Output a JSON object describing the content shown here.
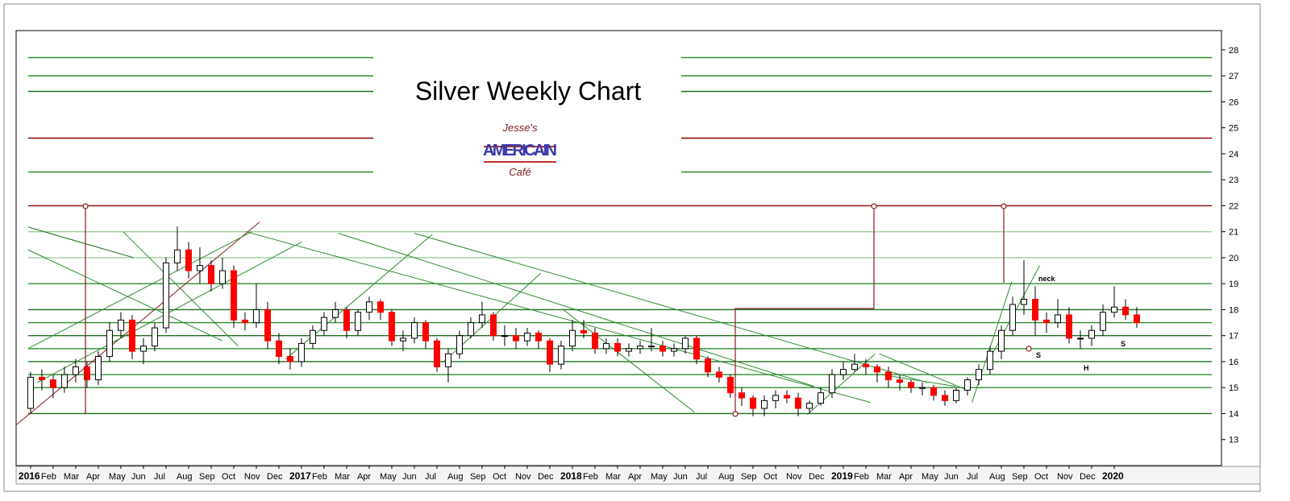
{
  "chart_data": {
    "type": "candlestick",
    "title": "Silver Weekly Chart",
    "logo": {
      "line1": "Jesse's",
      "line2": "AMERICAIN",
      "line3": "Café"
    },
    "annotations": [
      "neck",
      "S",
      "H",
      "S"
    ],
    "xlim": [
      -0.64,
      52.75
    ],
    "ylim": [
      12,
      28.74
    ],
    "yticks": [
      13,
      14,
      15,
      16,
      17,
      18,
      19,
      20,
      21,
      22,
      23,
      24,
      25,
      26,
      27,
      28
    ],
    "xticks": [
      {
        "value": 0,
        "label": "2016"
      },
      {
        "value": 1,
        "label": "Feb"
      },
      {
        "value": 2,
        "label": "Mar"
      },
      {
        "value": 3,
        "label": "Apr"
      },
      {
        "value": 4,
        "label": "May"
      },
      {
        "value": 5,
        "label": "Jun"
      },
      {
        "value": 6,
        "label": "Jul"
      },
      {
        "value": 7,
        "label": "Aug"
      },
      {
        "value": 8,
        "label": "Sep"
      },
      {
        "value": 9,
        "label": "Oct"
      },
      {
        "value": 10,
        "label": "Nov"
      },
      {
        "value": 11,
        "label": "Dec"
      },
      {
        "value": 12,
        "label": "2017"
      },
      {
        "value": 13,
        "label": "Feb"
      },
      {
        "value": 14,
        "label": "Mar"
      },
      {
        "value": 15,
        "label": "Apr"
      },
      {
        "value": 16,
        "label": "May"
      },
      {
        "value": 17,
        "label": "Jun"
      },
      {
        "value": 18,
        "label": "Jul"
      },
      {
        "value": 19,
        "label": "Aug"
      },
      {
        "value": 20,
        "label": "Sep"
      },
      {
        "value": 21,
        "label": "Oct"
      },
      {
        "value": 22,
        "label": "Nov"
      },
      {
        "value": 23,
        "label": "Dec"
      },
      {
        "value": 24,
        "label": "2018"
      },
      {
        "value": 25,
        "label": "Feb"
      },
      {
        "value": 26,
        "label": "Mar"
      },
      {
        "value": 27,
        "label": "Apr"
      },
      {
        "value": 28,
        "label": "May"
      },
      {
        "value": 29,
        "label": "Jun"
      },
      {
        "value": 30,
        "label": "Jul"
      },
      {
        "value": 31,
        "label": "Aug"
      },
      {
        "value": 32,
        "label": "Sep"
      },
      {
        "value": 33,
        "label": "Oct"
      },
      {
        "value": 34,
        "label": "Nov"
      },
      {
        "value": 35,
        "label": "Dec"
      },
      {
        "value": 36,
        "label": "2019"
      },
      {
        "value": 37,
        "label": "Feb"
      },
      {
        "value": 38,
        "label": "Mar"
      },
      {
        "value": 39,
        "label": "Apr"
      },
      {
        "value": 40,
        "label": "May"
      },
      {
        "value": 41,
        "label": "Jun"
      },
      {
        "value": 42,
        "label": "Jul"
      },
      {
        "value": 43,
        "label": "Aug"
      },
      {
        "value": 44,
        "label": "Sep"
      },
      {
        "value": 45,
        "label": "Oct"
      },
      {
        "value": 46,
        "label": "Nov"
      },
      {
        "value": 47,
        "label": "Dec"
      },
      {
        "value": 48,
        "label": "2020"
      }
    ],
    "up_color": "#ffffff",
    "down_color": "#ff0000",
    "x": [
      0,
      0.5,
      1,
      1.5,
      2,
      2.5,
      3,
      3.5,
      4,
      4.5,
      5,
      5.5,
      6,
      6.5,
      7,
      7.5,
      8,
      8.5,
      9,
      9.5,
      10,
      10.5,
      11,
      11.5,
      12,
      12.5,
      13,
      13.5,
      14,
      14.5,
      15,
      15.5,
      16,
      16.5,
      17,
      17.5,
      18,
      18.5,
      19,
      19.5,
      20,
      20.5,
      21,
      21.5,
      22,
      22.5,
      23,
      23.5,
      24,
      24.5,
      25,
      25.5,
      26,
      26.5,
      27,
      27.5,
      28,
      28.5,
      29,
      29.5,
      30,
      30.5,
      31,
      31.5,
      32,
      32.5,
      33,
      33.5,
      34,
      34.5,
      35,
      35.5,
      36,
      36.5,
      37,
      37.5,
      38,
      38.5,
      39,
      39.5,
      40,
      40.5,
      41,
      41.5,
      42,
      42.5,
      43,
      43.5,
      44,
      44.5,
      45,
      45.5,
      46,
      46.5,
      47,
      47.5,
      48,
      48.5,
      49
    ],
    "candles": [
      [
        14.2,
        15.6,
        14.0,
        15.4
      ],
      [
        15.4,
        15.7,
        14.9,
        15.3
      ],
      [
        15.3,
        15.5,
        14.6,
        15.0
      ],
      [
        15.0,
        15.8,
        14.8,
        15.5
      ],
      [
        15.5,
        16.1,
        15.2,
        15.8
      ],
      [
        15.8,
        16.0,
        15.0,
        15.3
      ],
      [
        15.3,
        16.4,
        15.1,
        16.2
      ],
      [
        16.2,
        17.5,
        16.0,
        17.2
      ],
      [
        17.2,
        17.9,
        16.9,
        17.6
      ],
      [
        17.6,
        17.8,
        16.1,
        16.4
      ],
      [
        16.4,
        16.9,
        15.9,
        16.6
      ],
      [
        16.6,
        17.5,
        16.4,
        17.3
      ],
      [
        17.3,
        20.0,
        17.1,
        19.8
      ],
      [
        19.8,
        21.2,
        19.5,
        20.3
      ],
      [
        20.3,
        20.6,
        19.2,
        19.5
      ],
      [
        19.5,
        20.4,
        19.0,
        19.7
      ],
      [
        19.7,
        19.9,
        18.7,
        19.0
      ],
      [
        19.0,
        20.0,
        18.8,
        19.5
      ],
      [
        19.5,
        19.7,
        17.3,
        17.6
      ],
      [
        17.6,
        17.9,
        17.2,
        17.5
      ],
      [
        17.5,
        19.0,
        17.3,
        18.0
      ],
      [
        18.0,
        18.3,
        16.5,
        16.8
      ],
      [
        16.8,
        17.1,
        15.9,
        16.2
      ],
      [
        16.2,
        16.5,
        15.7,
        16.0
      ],
      [
        16.0,
        16.9,
        15.8,
        16.7
      ],
      [
        16.7,
        17.4,
        16.5,
        17.2
      ],
      [
        17.2,
        17.9,
        17.0,
        17.7
      ],
      [
        17.7,
        18.3,
        17.5,
        18.0
      ],
      [
        18.0,
        18.1,
        16.9,
        17.2
      ],
      [
        17.2,
        18.0,
        17.0,
        17.9
      ],
      [
        17.9,
        18.5,
        17.6,
        18.3
      ],
      [
        18.3,
        18.4,
        17.6,
        17.9
      ],
      [
        17.9,
        18.0,
        16.6,
        16.8
      ],
      [
        16.8,
        17.2,
        16.4,
        16.9
      ],
      [
        16.9,
        17.7,
        16.7,
        17.5
      ],
      [
        17.5,
        17.6,
        16.5,
        16.8
      ],
      [
        16.8,
        16.9,
        15.6,
        15.8
      ],
      [
        15.8,
        16.5,
        15.2,
        16.3
      ],
      [
        16.3,
        17.2,
        16.1,
        17.0
      ],
      [
        17.0,
        17.7,
        16.9,
        17.5
      ],
      [
        17.5,
        18.3,
        17.3,
        17.8
      ],
      [
        17.8,
        17.9,
        16.8,
        17.0
      ],
      [
        17.0,
        17.4,
        16.6,
        17.0
      ],
      [
        17.0,
        17.3,
        16.5,
        16.8
      ],
      [
        16.8,
        17.3,
        16.6,
        17.1
      ],
      [
        17.1,
        17.2,
        16.5,
        16.8
      ],
      [
        16.8,
        16.9,
        15.6,
        15.9
      ],
      [
        15.9,
        16.8,
        15.7,
        16.6
      ],
      [
        16.6,
        17.6,
        16.4,
        17.2
      ],
      [
        17.2,
        17.6,
        16.9,
        17.1
      ],
      [
        17.1,
        17.3,
        16.3,
        16.5
      ],
      [
        16.5,
        16.9,
        16.3,
        16.7
      ],
      [
        16.7,
        16.9,
        16.2,
        16.4
      ],
      [
        16.4,
        16.7,
        16.2,
        16.5
      ],
      [
        16.5,
        16.8,
        16.3,
        16.6
      ],
      [
        16.6,
        17.3,
        16.4,
        16.6
      ],
      [
        16.6,
        16.8,
        16.2,
        16.4
      ],
      [
        16.4,
        16.7,
        16.2,
        16.5
      ],
      [
        16.5,
        17.0,
        16.3,
        16.9
      ],
      [
        16.9,
        17.0,
        15.9,
        16.1
      ],
      [
        16.1,
        16.2,
        15.4,
        15.6
      ],
      [
        15.6,
        15.8,
        15.2,
        15.4
      ],
      [
        15.4,
        15.5,
        14.6,
        14.8
      ],
      [
        14.8,
        15.0,
        14.3,
        14.6
      ],
      [
        14.6,
        14.7,
        13.9,
        14.2
      ],
      [
        14.2,
        14.7,
        13.9,
        14.5
      ],
      [
        14.5,
        14.9,
        14.2,
        14.7
      ],
      [
        14.7,
        14.9,
        14.4,
        14.6
      ],
      [
        14.6,
        14.8,
        13.9,
        14.2
      ],
      [
        14.2,
        14.5,
        14.0,
        14.4
      ],
      [
        14.4,
        15.0,
        14.3,
        14.8
      ],
      [
        14.8,
        15.7,
        14.6,
        15.5
      ],
      [
        15.5,
        16.0,
        15.3,
        15.7
      ],
      [
        15.7,
        16.3,
        15.6,
        15.9
      ],
      [
        15.9,
        16.1,
        15.5,
        15.8
      ],
      [
        15.8,
        15.9,
        15.2,
        15.6
      ],
      [
        15.6,
        15.8,
        15.0,
        15.3
      ],
      [
        15.3,
        15.5,
        14.9,
        15.2
      ],
      [
        15.2,
        15.3,
        14.8,
        15.0
      ],
      [
        15.0,
        15.2,
        14.7,
        15.0
      ],
      [
        15.0,
        15.1,
        14.5,
        14.7
      ],
      [
        14.7,
        14.9,
        14.3,
        14.5
      ],
      [
        14.5,
        15.0,
        14.4,
        14.9
      ],
      [
        14.9,
        15.4,
        14.7,
        15.3
      ],
      [
        15.3,
        15.9,
        15.1,
        15.7
      ],
      [
        15.7,
        16.6,
        15.5,
        16.4
      ],
      [
        16.4,
        17.4,
        16.1,
        17.2
      ],
      [
        17.2,
        18.5,
        17.0,
        18.2
      ],
      [
        18.2,
        19.9,
        17.8,
        18.4
      ],
      [
        18.4,
        18.9,
        17.0,
        17.6
      ],
      [
        17.6,
        17.9,
        17.1,
        17.5
      ],
      [
        17.5,
        18.4,
        17.3,
        17.8
      ],
      [
        17.8,
        18.1,
        16.7,
        16.9
      ],
      [
        16.9,
        17.2,
        16.5,
        16.9
      ],
      [
        16.9,
        17.4,
        16.6,
        17.2
      ],
      [
        17.2,
        18.2,
        17.0,
        17.9
      ],
      [
        17.9,
        18.9,
        17.7,
        18.1
      ],
      [
        18.1,
        18.4,
        17.6,
        17.8
      ],
      [
        17.8,
        18.1,
        17.3,
        17.5
      ]
    ],
    "upper_levels": [
      {
        "value": 27.7,
        "color": "#2e8b2e"
      },
      {
        "value": 27,
        "color": "#2e8b2e"
      },
      {
        "value": 26.4,
        "color": "#1f6e1f"
      },
      {
        "value": 24.6,
        "color": "#8b0000"
      },
      {
        "value": 23.3,
        "color": "#2e8b2e"
      }
    ],
    "levels": [
      {
        "value": 22,
        "color": "#8b0000"
      },
      {
        "value": 21,
        "color": "#9fcf9f"
      },
      {
        "value": 20,
        "color": "#9fcf9f"
      },
      {
        "value": 19,
        "color": "#2e8b2e"
      },
      {
        "value": 18,
        "color": "#1f6e1f"
      },
      {
        "value": 17.5,
        "color": "#2e8b2e"
      },
      {
        "value": 17,
        "color": "#1f6e1f"
      },
      {
        "value": 16.5,
        "color": "#2e8b2e"
      },
      {
        "value": 16,
        "color": "#1f6e1f"
      },
      {
        "value": 15.5,
        "color": "#2e8b2e"
      },
      {
        "value": 15,
        "color": "#2e8b2e"
      },
      {
        "value": 14,
        "color": "#1f6e1f"
      }
    ],
    "trendlines": [
      {
        "points": [
          -0.64,
          13.56,
          10.14,
          21.37
        ],
        "color": "#8b1a1a"
      },
      {
        "points": [
          -0.11,
          21.18,
          4.57,
          20.0
        ],
        "color": "#1f6e1f"
      },
      {
        "points": [
          -0.11,
          20.3,
          8.5,
          16.8
        ],
        "color": "#2e8b2e"
      },
      {
        "points": [
          -0.11,
          16.5,
          9.8,
          21.0
        ],
        "color": "#2e8b2e"
      },
      {
        "points": [
          0.3,
          15.2,
          12.0,
          20.6
        ],
        "color": "#2e8b2e"
      },
      {
        "points": [
          4.1,
          21.0,
          9.2,
          16.6
        ],
        "color": "#2e8b2e"
      },
      {
        "points": [
          9.54,
          21.0,
          37.2,
          14.43
        ],
        "color": "#2e8b2e"
      },
      {
        "points": [
          13.64,
          20.94,
          34.7,
          15.05
        ],
        "color": "#2e8b2e"
      },
      {
        "points": [
          17.0,
          20.94,
          39.7,
          15.2
        ],
        "color": "#2e8b2e"
      },
      {
        "points": [
          11.3,
          16.1,
          17.8,
          20.9
        ],
        "color": "#2e8b2e"
      },
      {
        "points": [
          18.3,
          16.0,
          22.6,
          19.4
        ],
        "color": "#2e8b2e"
      },
      {
        "points": [
          23.6,
          18.0,
          29.4,
          14.06
        ],
        "color": "#2e8b2e"
      },
      {
        "points": [
          34.4,
          13.96,
          37.4,
          16.29
        ],
        "color": "#2e8b2e"
      },
      {
        "points": [
          37.6,
          15.51,
          40.96,
          15.05
        ],
        "color": "#2e8b2e"
      },
      {
        "points": [
          37.6,
          16.3,
          41.5,
          14.9
        ],
        "color": "#2e8b2e"
      },
      {
        "points": [
          41.7,
          14.43,
          43.46,
          19.08
        ],
        "color": "#2e8b2e"
      },
      {
        "points": [
          42.6,
          16.29,
          44.7,
          19.7
        ],
        "color": "#2e8b2e"
      }
    ]
  }
}
